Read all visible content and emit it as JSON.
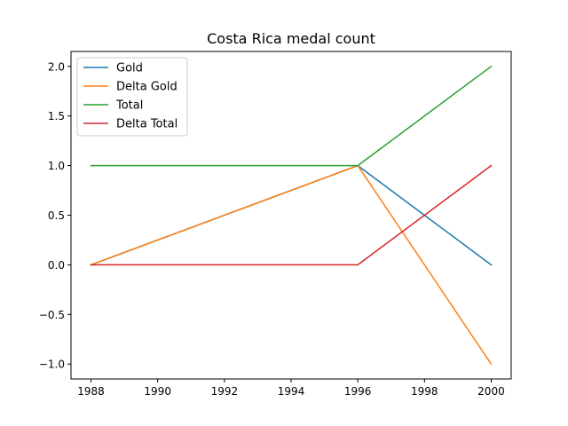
{
  "chart_data": {
    "type": "line",
    "title": "Costa Rica medal count",
    "xlabel": "",
    "ylabel": "",
    "x": [
      1988,
      1996,
      2000
    ],
    "series": [
      {
        "name": "Gold",
        "values": [
          0,
          1,
          0
        ],
        "color": "#1f77b4"
      },
      {
        "name": "Delta Gold",
        "values": [
          0,
          1,
          -1
        ],
        "color": "#ff7f0e"
      },
      {
        "name": "Total",
        "values": [
          1,
          1,
          2
        ],
        "color": "#2ca02c"
      },
      {
        "name": "Delta Total",
        "values": [
          0,
          0,
          1
        ],
        "color": "#d62728"
      }
    ],
    "xlim": [
      1987.4,
      2000.6
    ],
    "ylim": [
      -1.15,
      2.15
    ],
    "xticks": [
      1988,
      1990,
      1992,
      1994,
      1996,
      1998,
      2000
    ],
    "yticks": [
      -1.0,
      -0.5,
      0.0,
      0.5,
      1.0,
      1.5,
      2.0
    ],
    "ytick_labels": [
      "−1.0",
      "−0.5",
      "0.0",
      "0.5",
      "1.0",
      "1.5",
      "2.0"
    ],
    "grid": false,
    "legend_position": "top-left"
  }
}
